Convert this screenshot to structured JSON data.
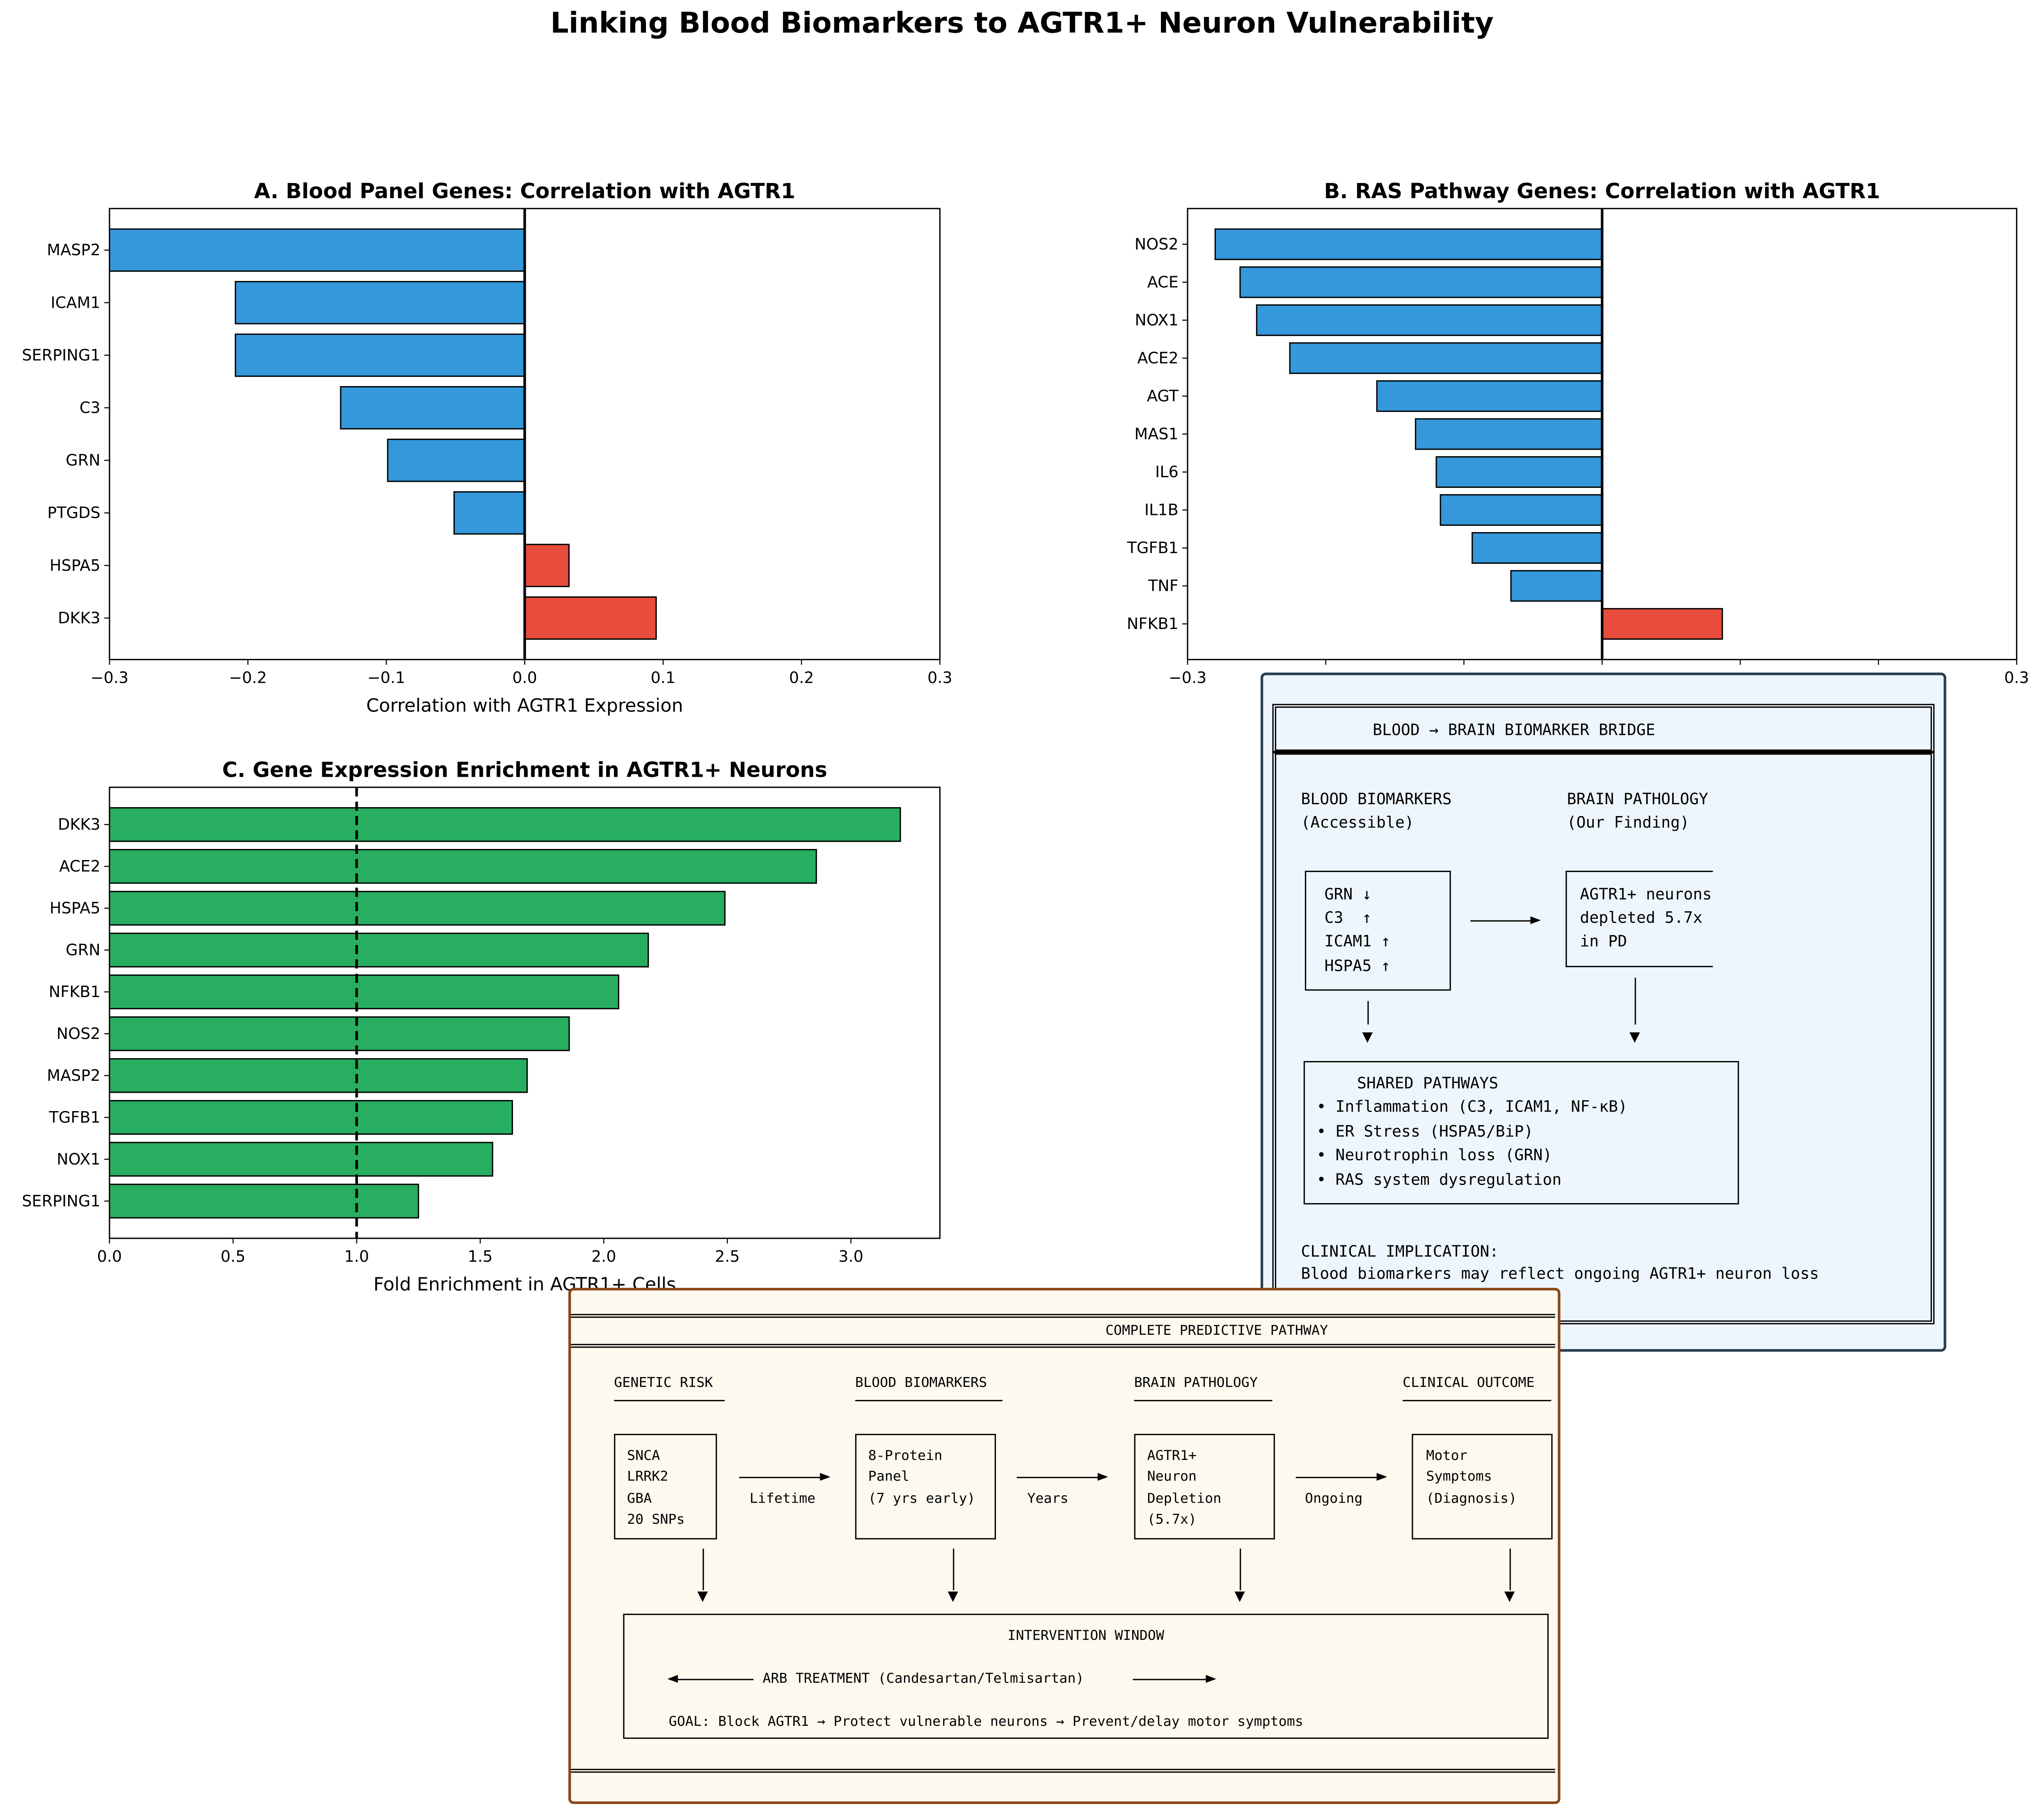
{
  "title": "Linking Blood Biomarkers to AGTR1+ Neuron Vulnerability",
  "colors": {
    "negative": "#3498db",
    "positive": "#e74c3c",
    "enrichment": "#27ae60",
    "bridge_bg": "#eef6fd",
    "bridge_border": "#2c3e50",
    "pathway_bg": "#fdf9ee",
    "pathway_border": "#8b4513"
  },
  "chart_data": [
    {
      "type": "bar",
      "orientation": "horizontal",
      "title": "A. Blood Panel Genes: Correlation with AGTR1",
      "xlabel": "Correlation with AGTR1 Expression",
      "xlim": [
        -0.3,
        0.3
      ],
      "xticks": [
        "−0.3",
        "−0.2",
        "−0.1",
        "0.0",
        "0.1",
        "0.2",
        "0.3"
      ],
      "xtick_values": [
        -0.3,
        -0.2,
        -0.1,
        0.0,
        0.1,
        0.2,
        0.3
      ],
      "reference_line": 0,
      "categories": [
        "MASP2",
        "ICAM1",
        "SERPING1",
        "C3",
        "GRN",
        "PTGDS",
        "HSPA5",
        "DKK3"
      ],
      "values": [
        -0.3,
        -0.209,
        -0.209,
        -0.133,
        -0.099,
        -0.051,
        0.032,
        0.095
      ]
    },
    {
      "type": "bar",
      "orientation": "horizontal",
      "title": "B. RAS Pathway Genes: Correlation with AGTR1",
      "xlabel": "",
      "xlim": [
        -0.3,
        0.3
      ],
      "xticks": [
        "−0.3",
        "",
        "",
        "",
        "",
        "",
        "0.3"
      ],
      "xtick_values": [
        -0.3,
        -0.2,
        -0.1,
        0.0,
        0.1,
        0.2,
        0.3
      ],
      "reference_line": 0,
      "categories": [
        "NOS2",
        "ACE",
        "NOX1",
        "ACE2",
        "AGT",
        "MAS1",
        "IL6",
        "IL1B",
        "TGFB1",
        "TNF",
        "NFKB1"
      ],
      "values": [
        -0.28,
        -0.262,
        -0.25,
        -0.226,
        -0.163,
        -0.135,
        -0.12,
        -0.117,
        -0.094,
        -0.066,
        0.087
      ]
    },
    {
      "type": "bar",
      "orientation": "horizontal",
      "title": "C. Gene Expression Enrichment in AGTR1+ Neurons",
      "xlabel": "Fold Enrichment in AGTR1+ Cells",
      "xlim": [
        0,
        3.36
      ],
      "xticks": [
        "0.0",
        "0.5",
        "1.0",
        "1.5",
        "2.0",
        "2.5",
        "3.0"
      ],
      "xtick_values": [
        0,
        0.5,
        1.0,
        1.5,
        2.0,
        2.5,
        3.0
      ],
      "reference_line": 1.0,
      "reference_style": "dashed",
      "categories": [
        "DKK3",
        "ACE2",
        "HSPA5",
        "GRN",
        "NFKB1",
        "NOS2",
        "MASP2",
        "TGFB1",
        "NOX1",
        "SERPING1"
      ],
      "values": [
        3.2,
        2.86,
        2.49,
        2.18,
        2.06,
        1.86,
        1.69,
        1.63,
        1.55,
        1.25
      ]
    }
  ],
  "bridge": {
    "title": "BLOOD → BRAIN BIOMARKER BRIDGE",
    "left_head1": "BLOOD BIOMARKERS",
    "left_head2": "(Accessible)",
    "right_head1": "BRAIN PATHOLOGY",
    "right_head2": "(Our Finding)",
    "left_items": [
      "GRN ↓",
      "C3  ↑",
      "ICAM1 ↑",
      "HSPA5 ↑"
    ],
    "right_items": [
      "AGTR1+ neurons",
      "depleted 5.7x",
      "in PD"
    ],
    "shared_title": "SHARED PATHWAYS",
    "shared_items": [
      "• Inflammation (C3, ICAM1, NF-κB)",
      "• ER Stress (HSPA5/BiP)",
      "• Neurotrophin loss (GRN)",
      "• RAS system dysregulation"
    ],
    "clinical_head": "CLINICAL IMPLICATION:",
    "clinical_text": "Blood biomarkers may reflect ongoing AGTR1+ neuron loss"
  },
  "pathway": {
    "title": "COMPLETE PREDICTIVE PATHWAY",
    "stages": [
      {
        "head": "GENETIC RISK",
        "lines": [
          "SNCA",
          "LRRK2",
          "GBA",
          "20 SNPs"
        ]
      },
      {
        "head": "BLOOD BIOMARKERS",
        "lines": [
          "8-Protein",
          "Panel",
          "(7 yrs early)"
        ]
      },
      {
        "head": "BRAIN PATHOLOGY",
        "lines": [
          "AGTR1+",
          "Neuron",
          "Depletion",
          "(5.7x)"
        ]
      },
      {
        "head": "CLINICAL OUTCOME",
        "lines": [
          "Motor",
          "Symptoms",
          "(Diagnosis)"
        ]
      }
    ],
    "transitions": [
      "Lifetime",
      "Years",
      "Ongoing"
    ],
    "intervention_title": "INTERVENTION WINDOW",
    "treatment": "ARB TREATMENT (Candesartan/Telmisartan)",
    "goal": "GOAL: Block AGTR1 → Protect vulnerable neurons → Prevent/delay motor symptoms"
  }
}
